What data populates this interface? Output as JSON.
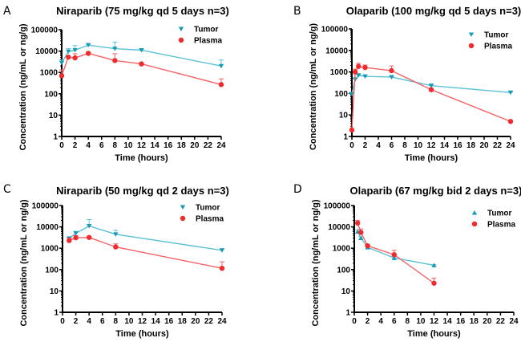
{
  "colors": {
    "tumor": "#1a9bb5",
    "tumor_line": "#5bc0d6",
    "plasma": "#ef2b2d",
    "plasma_line": "#f36366",
    "axis": "#000000"
  },
  "chart_data": [
    {
      "panel": "A",
      "type": "line",
      "title": "Niraparib (75 mg/kg qd 5 days n=3)",
      "xlabel": "Time (hours)",
      "ylabel": "Concentration (ng/mL or ng/g)",
      "yscale": "log",
      "ylim": [
        1,
        100000
      ],
      "xlim": [
        0,
        24
      ],
      "xticks": [
        0,
        2,
        4,
        6,
        8,
        10,
        12,
        14,
        16,
        18,
        20,
        22,
        24
      ],
      "yticks": [
        1,
        10,
        100,
        1000,
        10000,
        100000
      ],
      "ytick_labels": [
        "1",
        "10",
        "100",
        "1000",
        "10000",
        "100000"
      ],
      "legend": "top-right",
      "series": [
        {
          "name": "Tumor",
          "marker": "triangle-down",
          "x": [
            0,
            1,
            2,
            4,
            8,
            12,
            24
          ],
          "y": [
            2800,
            9500,
            11000,
            19000,
            13000,
            11000,
            2000
          ],
          "err_upper": [
            3800,
            13000,
            18000,
            21000,
            26000,
            11500,
            3800
          ]
        },
        {
          "name": "Plasma",
          "marker": "circle",
          "x": [
            0,
            1,
            2,
            4,
            8,
            12,
            24
          ],
          "y": [
            700,
            5200,
            4800,
            7800,
            3600,
            2500,
            270
          ],
          "err_upper": [
            1300,
            5600,
            7500,
            9000,
            7500,
            2700,
            500
          ]
        }
      ]
    },
    {
      "panel": "B",
      "type": "line",
      "title": "Olaparib (100 mg/kg qd 5 days n=3)",
      "xlabel": "Time (hours)",
      "ylabel": "Concentration (ng/mL or ng/g)",
      "yscale": "log",
      "ylim": [
        1,
        100000
      ],
      "xlim": [
        0,
        24
      ],
      "xticks": [
        0,
        2,
        4,
        6,
        8,
        10,
        12,
        14,
        16,
        18,
        20,
        22,
        24
      ],
      "yticks": [
        1,
        10,
        100,
        1000,
        10000,
        100000
      ],
      "ytick_labels": [
        "1",
        "10",
        "100",
        "1000",
        "10000",
        "100000"
      ],
      "legend": "top-right",
      "series": [
        {
          "name": "Tumor",
          "marker": "triangle-down",
          "x": [
            0,
            0.5,
            1,
            2,
            6,
            12,
            24
          ],
          "y": [
            95,
            450,
            700,
            620,
            580,
            230,
            110
          ],
          "err_upper": [
            100,
            480,
            750,
            650,
            620,
            280,
            120
          ]
        },
        {
          "name": "Plasma",
          "marker": "circle",
          "x": [
            0,
            0.5,
            1,
            2,
            6,
            12,
            24
          ],
          "y": [
            2,
            1000,
            1800,
            1600,
            1150,
            150,
            5
          ],
          "err_upper": [
            2,
            1350,
            2500,
            2100,
            1900,
            170,
            5.5
          ]
        }
      ]
    },
    {
      "panel": "C",
      "type": "line",
      "title": "Niraparib (50 mg/kg qd 2 days n=3)",
      "xlabel": "Time (hours)",
      "ylabel": "Concentration (ng/mL or ng/g)",
      "yscale": "log",
      "ylim": [
        1,
        100000
      ],
      "xlim": [
        0,
        24
      ],
      "xticks": [
        0,
        2,
        4,
        6,
        8,
        10,
        12,
        14,
        16,
        18,
        20,
        22,
        24
      ],
      "yticks": [
        1,
        10,
        100,
        1000,
        10000,
        100000
      ],
      "ytick_labels": [
        "1",
        "10",
        "100",
        "1000",
        "10000",
        "100000"
      ],
      "legend": "top-right",
      "series": [
        {
          "name": "Tumor",
          "marker": "triangle-down",
          "x": [
            1,
            2,
            4,
            8,
            24
          ],
          "y": [
            2900,
            5000,
            11000,
            4500,
            800
          ],
          "err_upper": [
            3300,
            6200,
            22000,
            7000,
            950
          ]
        },
        {
          "name": "Plasma",
          "marker": "circle",
          "x": [
            1,
            2,
            4,
            8,
            24
          ],
          "y": [
            2300,
            3100,
            3200,
            1150,
            115
          ],
          "err_upper": [
            3000,
            3900,
            3500,
            1600,
            230
          ]
        }
      ]
    },
    {
      "panel": "D",
      "type": "line",
      "title": "Olaparib (67 mg/kg bid 2 days n=3)",
      "xlabel": "Time (hours)",
      "ylabel": "Concentration (ng/mL or ng/g)",
      "yscale": "log",
      "ylim": [
        1,
        100000
      ],
      "xlim": [
        0,
        24
      ],
      "xticks": [
        0,
        2,
        4,
        6,
        8,
        10,
        12,
        14,
        16,
        18,
        20,
        22,
        24
      ],
      "yticks": [
        1,
        10,
        100,
        1000,
        10000,
        100000
      ],
      "ytick_labels": [
        "1",
        "10",
        "100",
        "1000",
        "10000",
        "100000"
      ],
      "legend": "top-right",
      "series": [
        {
          "name": "Tumor",
          "marker": "triangle-up",
          "x": [
            0.5,
            1,
            2,
            6,
            12
          ],
          "y": [
            6000,
            3000,
            1100,
            350,
            160
          ],
          "err_upper": [
            7500,
            3500,
            1200,
            400,
            170
          ]
        },
        {
          "name": "Plasma",
          "marker": "circle",
          "x": [
            0.5,
            1,
            2,
            6,
            12
          ],
          "y": [
            15000,
            5500,
            1300,
            500,
            23
          ],
          "err_upper": [
            20000,
            8000,
            1500,
            800,
            40
          ]
        }
      ]
    }
  ]
}
